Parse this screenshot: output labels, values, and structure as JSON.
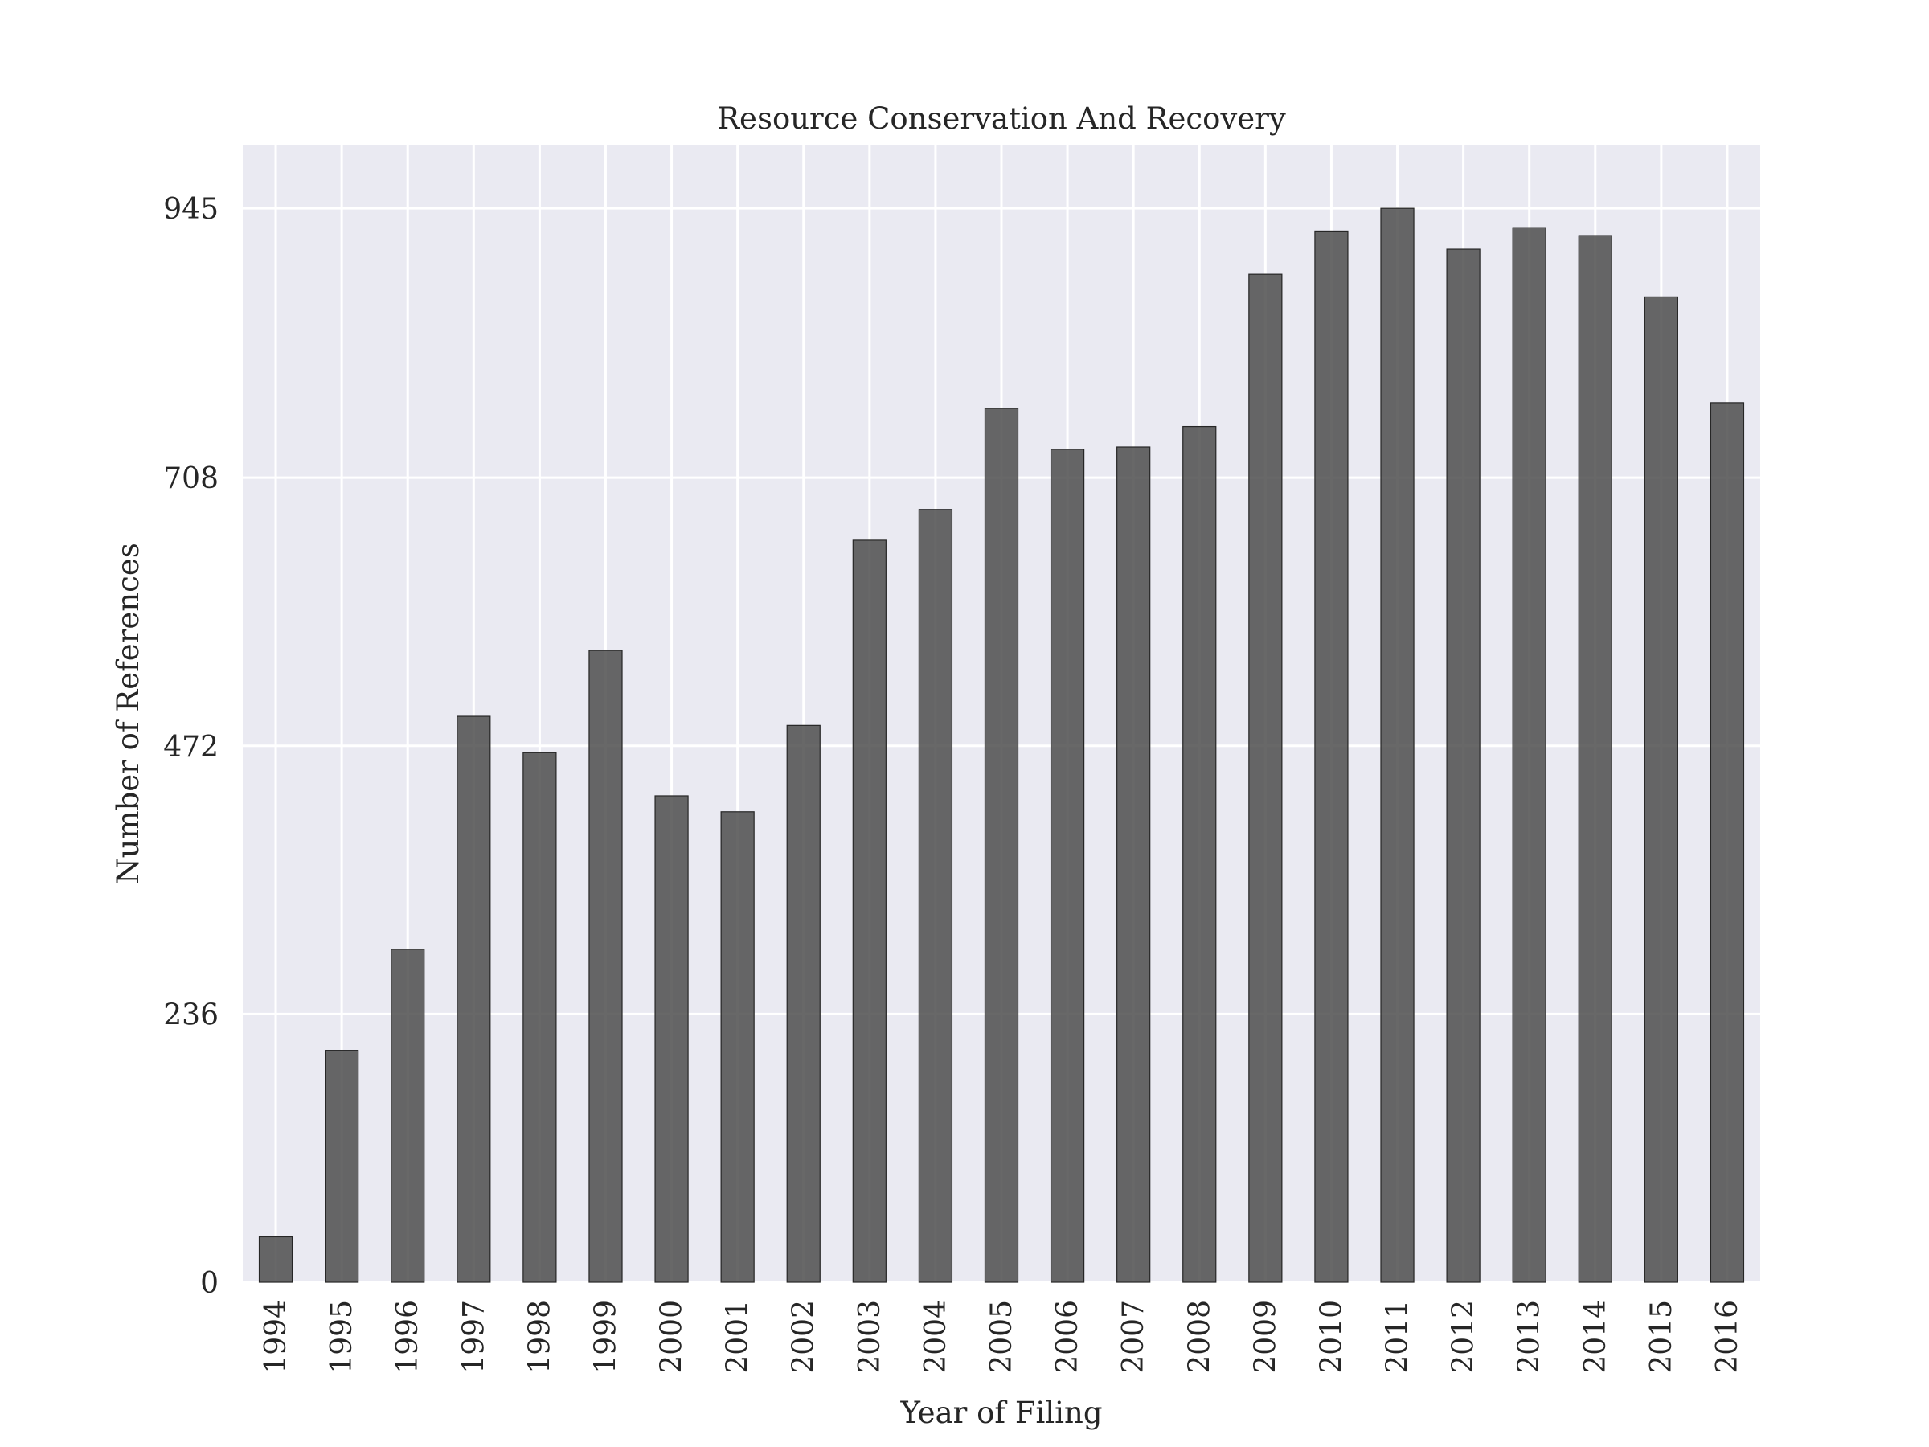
{
  "chart_data": {
    "type": "bar",
    "title": "Resource Conservation And Recovery",
    "xlabel": "Year of Filing",
    "ylabel": "Number of References",
    "categories": [
      "1994",
      "1995",
      "1996",
      "1997",
      "1998",
      "1999",
      "2000",
      "2001",
      "2002",
      "2003",
      "2004",
      "2005",
      "2006",
      "2007",
      "2008",
      "2009",
      "2010",
      "2011",
      "2012",
      "2013",
      "2014",
      "2015",
      "2016"
    ],
    "values": [
      40,
      204,
      293,
      498,
      466,
      556,
      428,
      414,
      490,
      653,
      680,
      769,
      733,
      735,
      753,
      887,
      925,
      945,
      909,
      928,
      921,
      867,
      774
    ],
    "yticks": [
      0,
      236,
      472,
      708,
      945
    ],
    "ylim": [
      0,
      1001
    ],
    "grid": true,
    "bar_color": "#4d4d4d",
    "background_color": "#eaeaf2"
  }
}
